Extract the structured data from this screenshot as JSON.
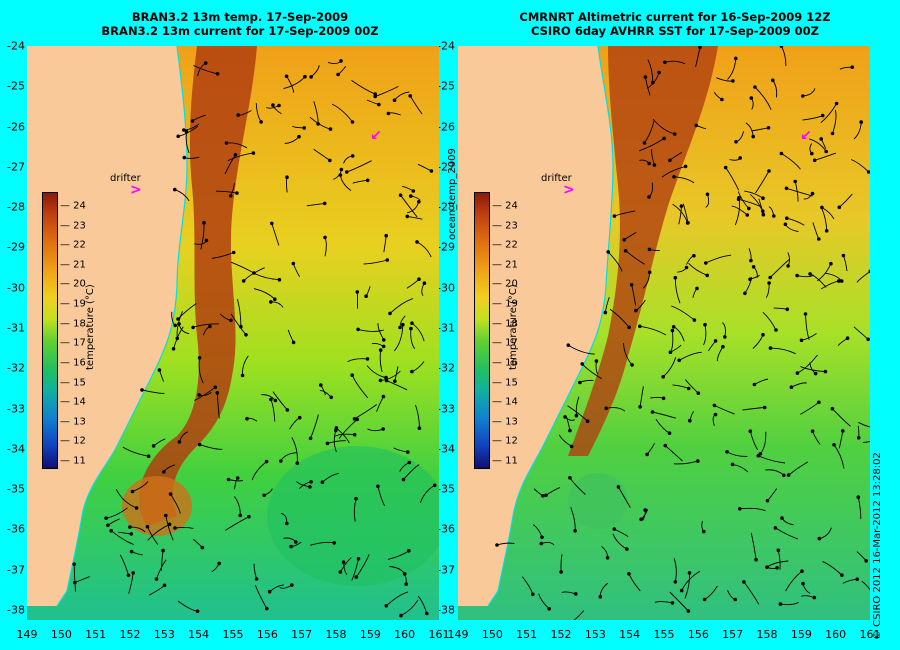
{
  "left_panel": {
    "title_line1": "BRAN3.2 13m temp. 17-Sep-2009",
    "title_line2": "BRAN3.2 13m current for 17-Sep-2009 00Z"
  },
  "right_panel": {
    "title_line1": "CMRNRT Altimetric current for 16-Sep-2009 12Z",
    "title_line2": "CSIRO 6day AVHRR SST for 17-Sep-2009 00Z"
  },
  "latitude_ticks": [
    "-24",
    "-25",
    "-26",
    "-27",
    "-28",
    "-29",
    "-30",
    "-31",
    "-32",
    "-33",
    "-34",
    "-35",
    "-36",
    "-37",
    "-38"
  ],
  "longitude_ticks": [
    "149",
    "150",
    "151",
    "152",
    "153",
    "154",
    "155",
    "156",
    "157",
    "158",
    "159",
    "160",
    "161"
  ],
  "drifter_label": "drifter",
  "drifter_symbol": ">",
  "colorbar": {
    "title": "temperature (°C)",
    "ticks": [
      "24",
      "23",
      "22",
      "21",
      "20",
      "19",
      "18",
      "17",
      "16",
      "15",
      "14",
      "13",
      "12",
      "11"
    ]
  },
  "vertical_label": "ocean_temp_2009",
  "copyright": "© CSIRO 2012   16-Mar-2012 13:28:02",
  "colors": {
    "background": "#00ffff",
    "land": "#f9c99a",
    "coastline": "#00e0e0",
    "drifter": "#ff00ff"
  }
}
